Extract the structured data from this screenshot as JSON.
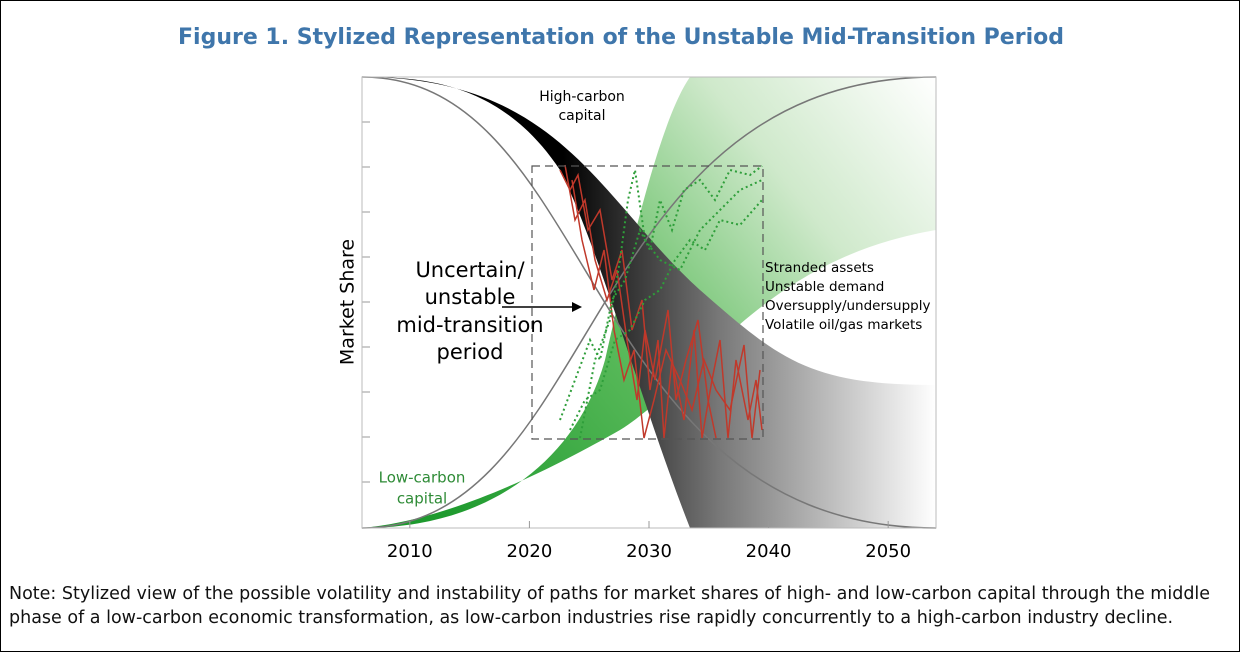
{
  "figure": {
    "title": "Figure 1. Stylized Representation of the Unstable Mid-Transition Period",
    "y_label": "Market Share",
    "xlim": [
      2006,
      2054
    ],
    "xticks": [
      2010,
      2020,
      2030,
      2040,
      2050
    ],
    "high_carbon_label": [
      "High-carbon",
      "capital"
    ],
    "low_carbon_label": [
      "Low-carbon",
      "capital"
    ],
    "period_label": [
      "Uncertain/",
      "unstable",
      "mid-transition",
      "period"
    ],
    "effects": [
      "Stranded assets",
      "Unstable demand",
      "Oversupply/undersupply",
      "Volatile oil/gas markets"
    ]
  },
  "note": "Note: Stylized view of the possible volatility and instability of paths for market shares of high- and low-carbon capital through the middle phase of a low-carbon economic transformation, as low-carbon industries rise rapidly concurrently to a high-carbon industry decline."
}
